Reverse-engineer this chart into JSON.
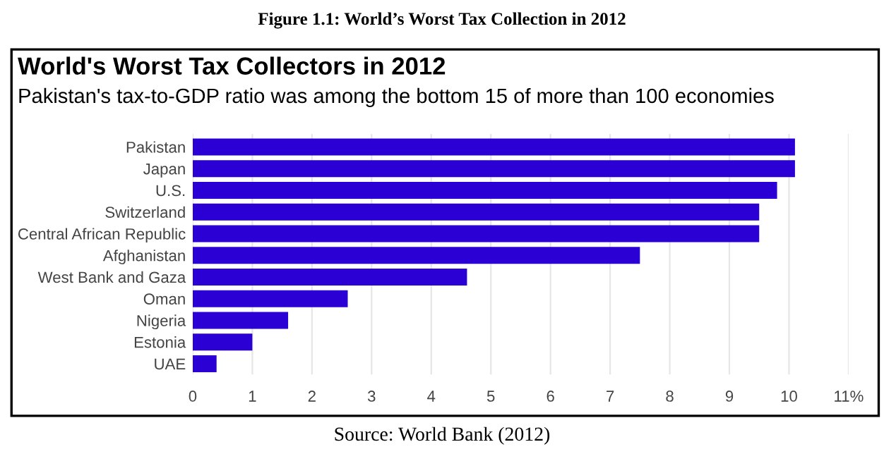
{
  "chart_data": {
    "type": "bar",
    "orientation": "horizontal",
    "title": "World's Worst Tax Collectors in 2012",
    "subtitle": "Pakistan's tax-to-GDP ratio was among the bottom 15 of more than 100 economies",
    "annotations": [
      "Figure 1.1: World’s Worst Tax Collection in 2012",
      "Source: World Bank (2012)"
    ],
    "categories": [
      "Pakistan",
      "Japan",
      "U.S.",
      "Switzerland",
      "Central African Republic",
      "Afghanistan",
      "West Bank and Gaza",
      "Oman",
      "Nigeria",
      "Estonia",
      "UAE"
    ],
    "values": [
      10.1,
      10.1,
      9.8,
      9.5,
      9.5,
      7.5,
      4.6,
      2.6,
      1.6,
      1.0,
      0.4
    ],
    "color": "#2a00d4",
    "xlim": [
      0,
      11
    ],
    "xticks": [
      0,
      1,
      2,
      3,
      4,
      5,
      6,
      7,
      8,
      9,
      10,
      {
        "value": 11,
        "label": "11%"
      }
    ],
    "grid": "x"
  }
}
